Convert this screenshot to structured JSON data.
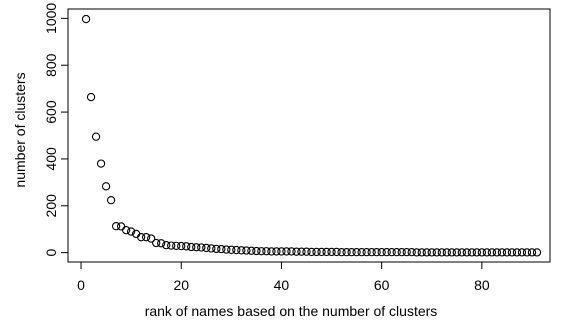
{
  "chart_data": {
    "type": "scatter",
    "title": "",
    "xlabel": "rank of names based on the number of clusters",
    "ylabel": "number of clusters",
    "xlim": [
      -2.6,
      93.6
    ],
    "ylim": [
      -40,
      1040
    ],
    "xticks": [
      0,
      20,
      40,
      60,
      80
    ],
    "yticks": [
      0,
      200,
      400,
      600,
      800,
      1000
    ],
    "grid": false,
    "legend": "none",
    "marker": "open-circle",
    "series": [
      {
        "points": [
          [
            1,
            997
          ],
          [
            2,
            664
          ],
          [
            3,
            495
          ],
          [
            4,
            380
          ],
          [
            5,
            283
          ],
          [
            6,
            224
          ],
          [
            7,
            113
          ],
          [
            8,
            112
          ],
          [
            9,
            96
          ],
          [
            10,
            90
          ],
          [
            11,
            80
          ],
          [
            12,
            66
          ],
          [
            13,
            66
          ],
          [
            14,
            60
          ],
          [
            15,
            41
          ],
          [
            16,
            40
          ],
          [
            17,
            32
          ],
          [
            18,
            30
          ],
          [
            19,
            29
          ],
          [
            20,
            28
          ],
          [
            21,
            27
          ],
          [
            22,
            24
          ],
          [
            23,
            23
          ],
          [
            24,
            22
          ],
          [
            25,
            20
          ],
          [
            26,
            18
          ],
          [
            27,
            16
          ],
          [
            28,
            15
          ],
          [
            29,
            13
          ],
          [
            30,
            12
          ],
          [
            31,
            11
          ],
          [
            32,
            10
          ],
          [
            33,
            9
          ],
          [
            34,
            8
          ],
          [
            35,
            7
          ],
          [
            36,
            6
          ],
          [
            37,
            6
          ],
          [
            38,
            5
          ],
          [
            39,
            5
          ],
          [
            40,
            5
          ],
          [
            41,
            5
          ],
          [
            42,
            5
          ],
          [
            43,
            4
          ],
          [
            44,
            4
          ],
          [
            45,
            4
          ],
          [
            46,
            3
          ],
          [
            47,
            3
          ],
          [
            48,
            3
          ],
          [
            49,
            3
          ],
          [
            50,
            3
          ],
          [
            51,
            3
          ],
          [
            52,
            2
          ],
          [
            53,
            2
          ],
          [
            54,
            2
          ],
          [
            55,
            2
          ],
          [
            56,
            2
          ],
          [
            57,
            2
          ],
          [
            58,
            2
          ],
          [
            59,
            2
          ],
          [
            60,
            2
          ],
          [
            61,
            2
          ],
          [
            62,
            2
          ],
          [
            63,
            2
          ],
          [
            64,
            2
          ],
          [
            65,
            2
          ],
          [
            66,
            2
          ],
          [
            67,
            1
          ],
          [
            68,
            1
          ],
          [
            69,
            1
          ],
          [
            70,
            1
          ],
          [
            71,
            1
          ],
          [
            72,
            1
          ],
          [
            73,
            1
          ],
          [
            74,
            1
          ],
          [
            75,
            1
          ],
          [
            76,
            1
          ],
          [
            77,
            1
          ],
          [
            78,
            1
          ],
          [
            79,
            1
          ],
          [
            80,
            1
          ],
          [
            81,
            1
          ],
          [
            82,
            1
          ],
          [
            83,
            1
          ],
          [
            84,
            1
          ],
          [
            85,
            1
          ],
          [
            86,
            1
          ],
          [
            87,
            1
          ],
          [
            88,
            1
          ],
          [
            89,
            1
          ],
          [
            90,
            1
          ],
          [
            91,
            1
          ]
        ]
      }
    ]
  }
}
